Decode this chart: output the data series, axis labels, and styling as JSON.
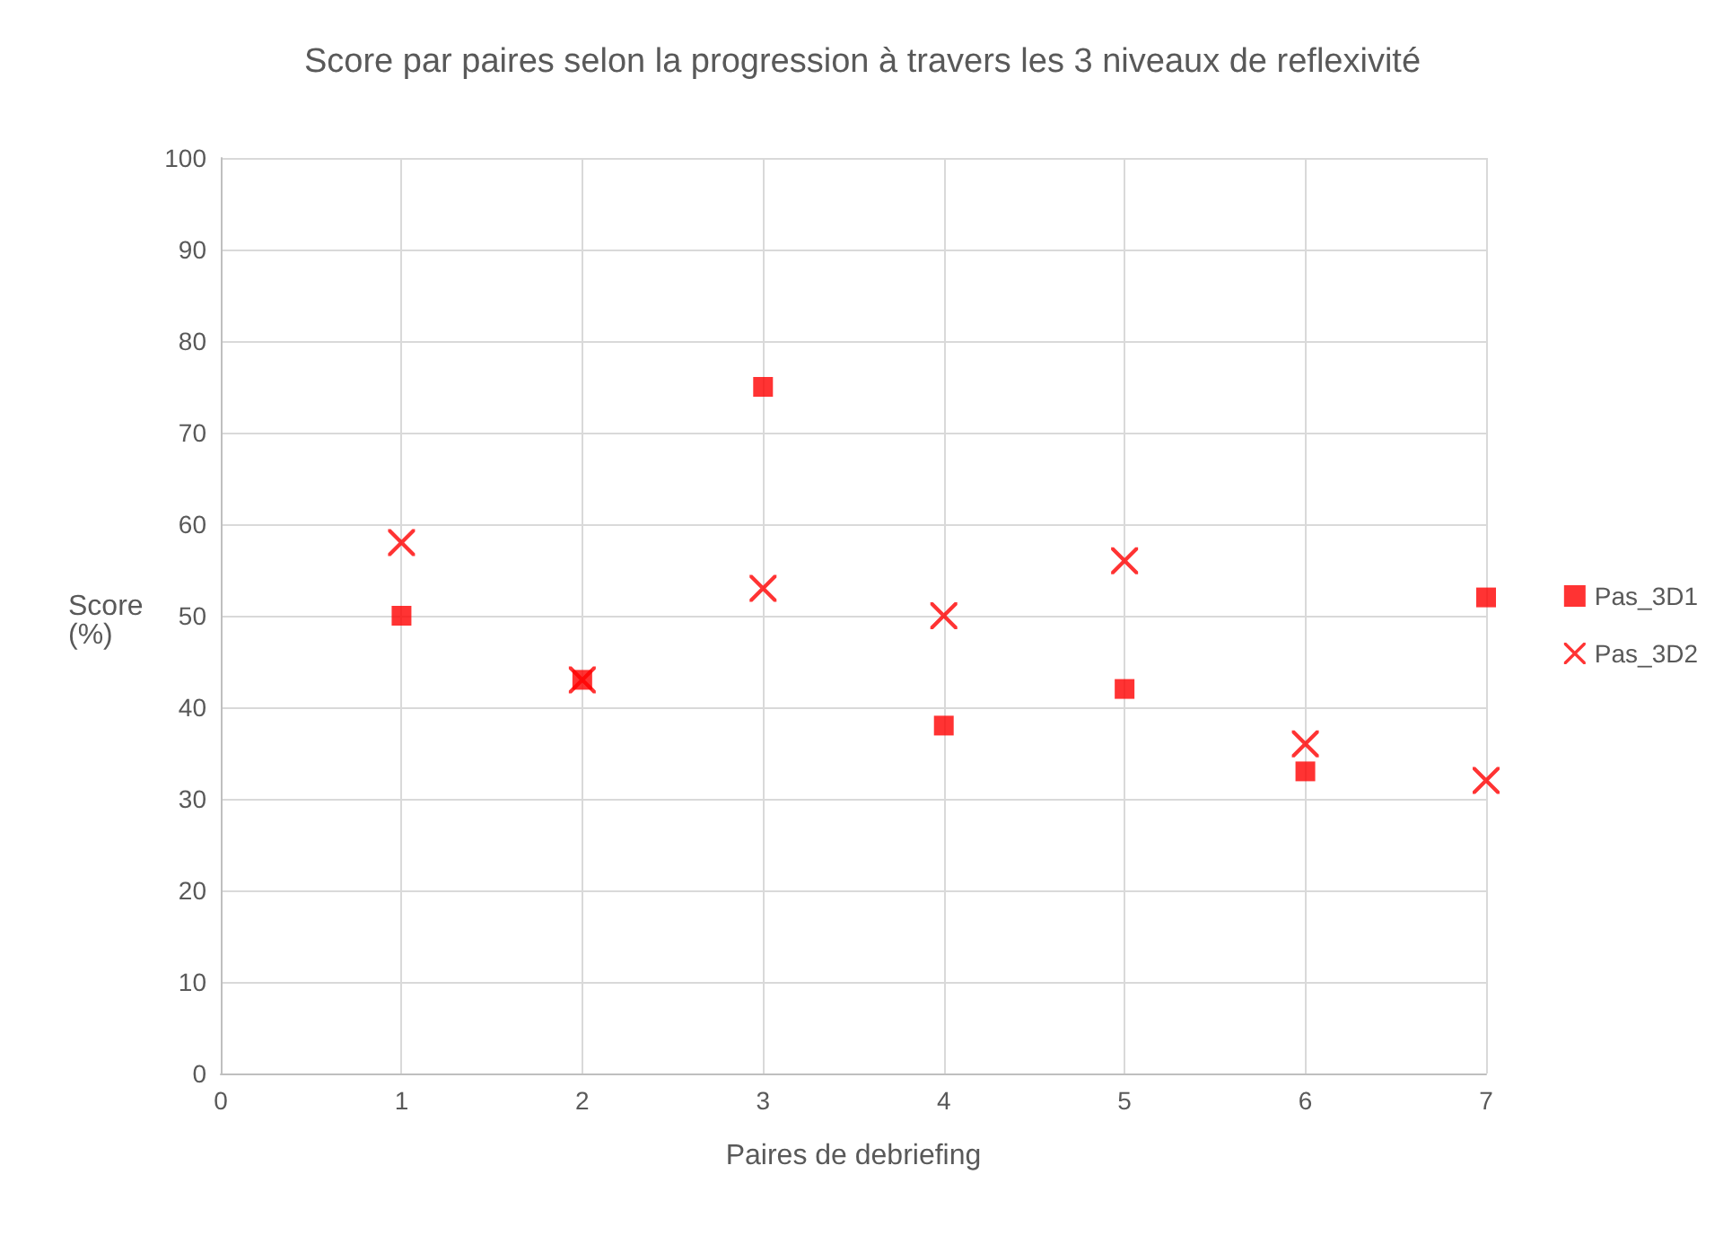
{
  "chart_data": {
    "type": "scatter",
    "title": "Score par paires selon la progression à travers les 3 niveaux de reflexivité",
    "xlabel": "Paires de debriefing",
    "ylabel": "Score\n(%)",
    "x": [
      1,
      2,
      3,
      4,
      5,
      6,
      7
    ],
    "series": [
      {
        "name": "Pas_3D1",
        "color": "#ff0000",
        "marker": "square",
        "values": [
          50,
          43,
          75,
          38,
          42,
          33,
          52
        ]
      },
      {
        "name": "Pas_3D2",
        "color": "#ff0000",
        "marker": "cross",
        "values": [
          58,
          43,
          53,
          50,
          56,
          36,
          32
        ]
      }
    ],
    "xlim": [
      0,
      7
    ],
    "xticks": [
      0,
      1,
      2,
      3,
      4,
      5,
      6,
      7
    ],
    "ylim": [
      0,
      100
    ],
    "yticks": [
      0,
      10,
      20,
      30,
      40,
      50,
      60,
      70,
      80,
      90,
      100
    ],
    "grid": true,
    "legend": "right"
  }
}
